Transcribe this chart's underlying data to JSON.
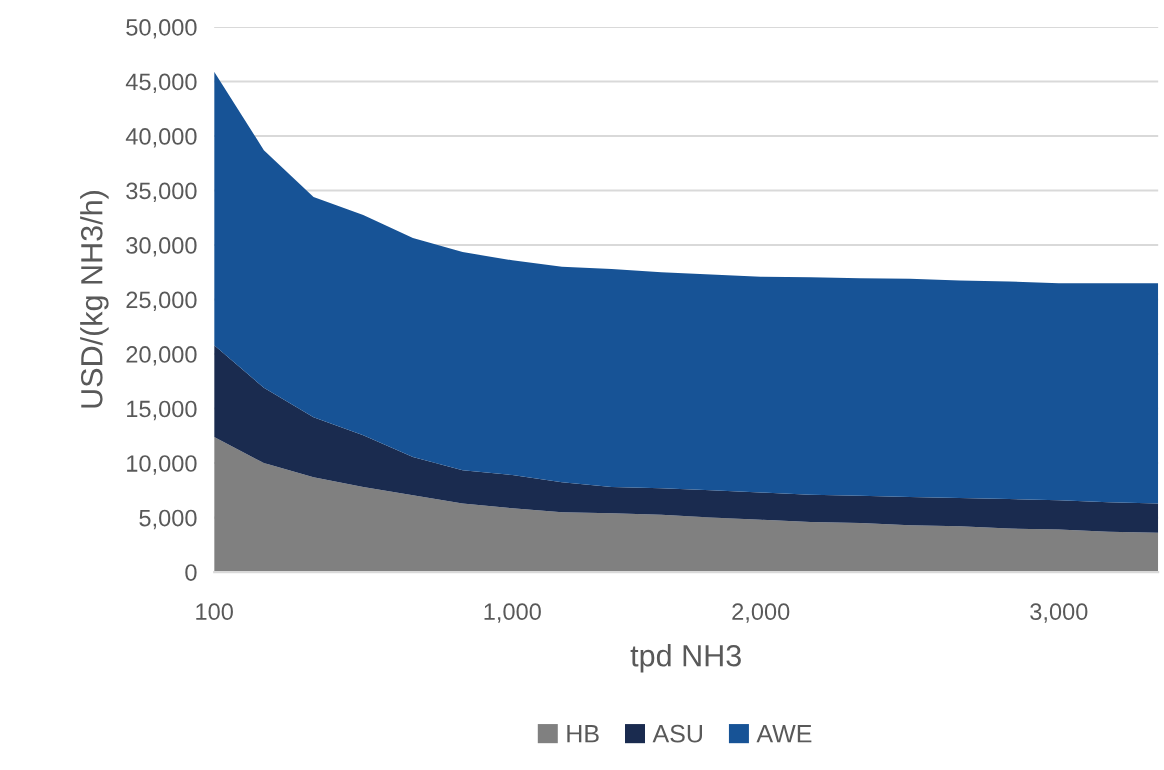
{
  "chart_data": {
    "type": "area",
    "stacked": true,
    "xlabel": "tpd NH3",
    "ylabel": "USD/(kg NH3/h)",
    "categories": [
      "100",
      null,
      null,
      null,
      null,
      null,
      "1,000",
      null,
      null,
      null,
      null,
      "2,000",
      null,
      null,
      null,
      null,
      null,
      "3,000",
      null,
      null
    ],
    "series": [
      {
        "name": "HB",
        "color": "#808080",
        "values": [
          12400,
          10000,
          8700,
          7800,
          7050,
          6300,
          5850,
          5500,
          5400,
          5250,
          5000,
          4800,
          4600,
          4500,
          4300,
          4200,
          4000,
          3900,
          3700,
          3600
        ]
      },
      {
        "name": "ASU",
        "color": "#1a2b4f",
        "values": [
          8400,
          6900,
          5500,
          4750,
          3500,
          3050,
          3050,
          2750,
          2400,
          2450,
          2500,
          2500,
          2500,
          2500,
          2600,
          2600,
          2700,
          2700,
          2700,
          2700
        ]
      },
      {
        "name": "AWE",
        "color": "#175396",
        "values": [
          25100,
          21800,
          20200,
          20200,
          20100,
          20000,
          19700,
          19750,
          20000,
          19800,
          19800,
          19800,
          19950,
          19950,
          20000,
          19950,
          19950,
          19900,
          20100,
          20200
        ]
      }
    ],
    "ylim": [
      0,
      50000
    ],
    "yticks": [
      {
        "value": 0,
        "label": "0"
      },
      {
        "value": 5000,
        "label": "5,000"
      },
      {
        "value": 10000,
        "label": "10,000"
      },
      {
        "value": 15000,
        "label": "15,000"
      },
      {
        "value": 20000,
        "label": "20,000"
      },
      {
        "value": 25000,
        "label": "25,000"
      },
      {
        "value": 30000,
        "label": "30,000"
      },
      {
        "value": 35000,
        "label": "35,000"
      },
      {
        "value": 40000,
        "label": "40,000"
      },
      {
        "value": 45000,
        "label": "45,000"
      },
      {
        "value": 50000,
        "label": "50,000"
      }
    ],
    "grid": "y",
    "legend": "bottom"
  }
}
